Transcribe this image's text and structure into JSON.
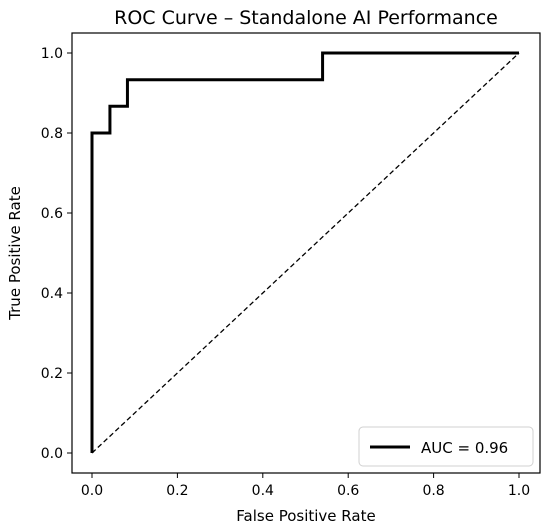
{
  "chart_data": {
    "type": "line",
    "title": "ROC Curve – Standalone AI Performance",
    "xlabel": "False Positive Rate",
    "ylabel": "True Positive Rate",
    "xlim": [
      0.0,
      1.0
    ],
    "ylim": [
      0.0,
      1.0
    ],
    "xticks": [
      "0.0",
      "0.2",
      "0.4",
      "0.6",
      "0.8",
      "1.0"
    ],
    "yticks": [
      "0.0",
      "0.2",
      "0.4",
      "0.6",
      "0.8",
      "1.0"
    ],
    "grid": false,
    "legend_position": "lower-right",
    "series": [
      {
        "name": "AUC = 0.96",
        "style": "solid",
        "color": "#000000",
        "x": [
          0.0,
          0.0,
          0.042,
          0.042,
          0.083,
          0.083,
          0.54,
          0.54,
          1.0
        ],
        "y": [
          0.0,
          0.8,
          0.8,
          0.867,
          0.867,
          0.933,
          0.933,
          1.0,
          1.0
        ]
      },
      {
        "style": "dashed",
        "color": "#000000",
        "x": [
          0.0,
          1.0
        ],
        "y": [
          0.0,
          1.0
        ]
      }
    ]
  }
}
